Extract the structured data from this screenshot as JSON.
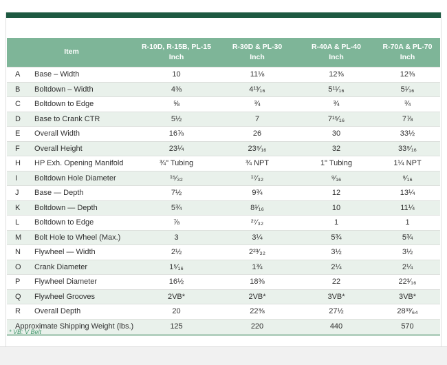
{
  "page": {
    "footnote": "* VB: V Belt",
    "colors": {
      "header_bg": "#7eb598",
      "alt_row_bg": "#e9f1eb",
      "top_rule": "#1d5941",
      "footnote_green": "#41966b",
      "table_bottom_border": "#b3d0bf"
    }
  },
  "table": {
    "header": {
      "item_label": "Item",
      "columns": [
        {
          "line1": "R-10D, R-15B, PL-15",
          "line2": "Inch"
        },
        {
          "line1": "R-30D & PL-30",
          "line2": "Inch"
        },
        {
          "line1": "R-40A & PL-40",
          "line2": "Inch"
        },
        {
          "line1": "R-70A & PL-70",
          "line2": "Inch"
        }
      ]
    },
    "rows": [
      {
        "letter": "A",
        "item": "Base – Width",
        "values": [
          "10",
          "11⅛",
          "12⅜",
          "12⅜"
        ]
      },
      {
        "letter": "B",
        "item": "Boltdown – Width",
        "values": [
          "4⅜",
          "4¹³⁄₁₆",
          "5¹¹⁄₁₆",
          "5¹⁄₁₆"
        ]
      },
      {
        "letter": "C",
        "item": "Boltdown to Edge",
        "values": [
          "⅝",
          "¾",
          "¾",
          "¾"
        ]
      },
      {
        "letter": "D",
        "item": "Base to Crank CTR",
        "values": [
          "5½",
          "7",
          "7¹⁵⁄₁₆",
          "7⅞"
        ]
      },
      {
        "letter": "E",
        "item": "Overall Width",
        "values": [
          "16⅞",
          "26",
          "30",
          "33½"
        ]
      },
      {
        "letter": "F",
        "item": "Overall Height",
        "values": [
          "23¼",
          "23⁹⁄₁₆",
          "32",
          "33⁹⁄₁₆"
        ]
      },
      {
        "letter": "H",
        "item": "HP Exh. Opening Manifold",
        "values": [
          "¾\" Tubing",
          "¾ NPT",
          "1\" Tubing",
          "1¼ NPT"
        ]
      },
      {
        "letter": "I",
        "item": "Boltdown Hole Diameter",
        "values": [
          "¹⁵⁄₃₂",
          "¹⁷⁄₃₂",
          "⁹⁄₁₆",
          "⁹⁄₁₆"
        ]
      },
      {
        "letter": "J",
        "item": "Base — Depth",
        "values": [
          "7½",
          "9¾",
          "12",
          "13¼"
        ]
      },
      {
        "letter": "K",
        "item": "Boltdown — Depth",
        "values": [
          "5¾",
          "8¹⁄₁₆",
          "10",
          "11¼"
        ]
      },
      {
        "letter": "L",
        "item": "Boltdown to Edge",
        "values": [
          "⅞",
          "²⁷⁄₃₂",
          "1",
          "1"
        ]
      },
      {
        "letter": "M",
        "item": "Bolt Hole to Wheel (Max.)",
        "values": [
          "3",
          "3¼",
          "5¾",
          "5¾"
        ]
      },
      {
        "letter": "N",
        "item": "Flywheel — Width",
        "values": [
          "2½",
          "2²³⁄₃₂",
          "3½",
          "3½"
        ]
      },
      {
        "letter": "O",
        "item": "Crank Diameter",
        "values": [
          "1⁵⁄₁₆",
          "1¾",
          "2¼",
          "2¼"
        ]
      },
      {
        "letter": "P",
        "item": "Flywheel Diameter",
        "values": [
          "16½",
          "18⅜",
          "22",
          "22³⁄₁₆"
        ]
      },
      {
        "letter": "Q",
        "item": "Flywheel Grooves",
        "values": [
          "2VB*",
          "2VB*",
          "3VB*",
          "3VB*"
        ]
      },
      {
        "letter": "R",
        "item": "Overall Depth",
        "values": [
          "20",
          "22⅜",
          "27½",
          "28³³⁄₆₄"
        ]
      }
    ],
    "footer_row": {
      "label": "Approximate Shipping Weight (lbs.)",
      "values": [
        "125",
        "220",
        "440",
        "570"
      ]
    }
  }
}
